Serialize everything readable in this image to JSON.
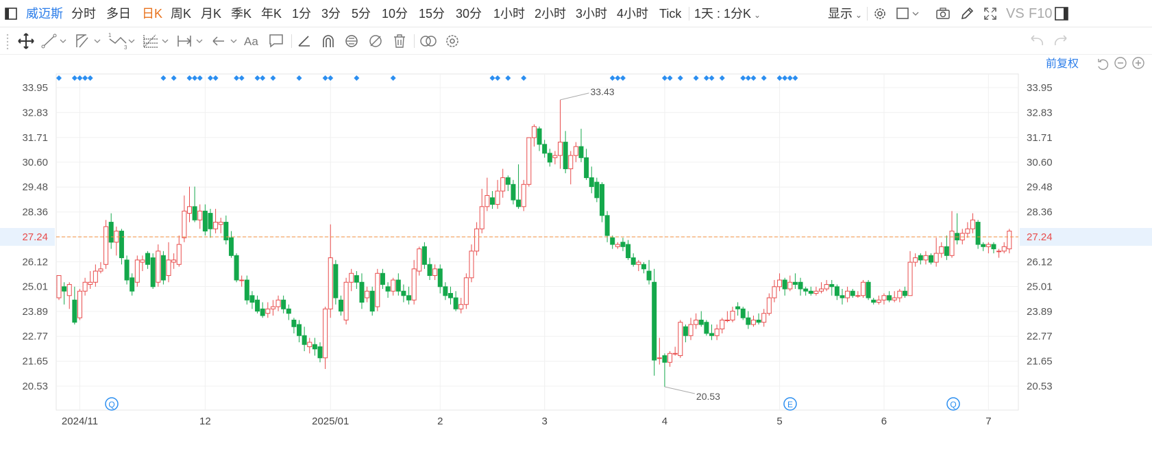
{
  "toolbar": {
    "stock_name": "威迈斯",
    "periods": [
      "分时",
      "多日",
      "日K",
      "周K",
      "月K",
      "季K",
      "年K",
      "1分",
      "3分",
      "5分",
      "10分",
      "15分",
      "30分",
      "1小时",
      "2小时",
      "3小时",
      "4小时",
      "Tick"
    ],
    "active_period": "日K",
    "combo_period": "1天 : 1分K",
    "display_label": "显示",
    "vs_label": "VS",
    "f10_label": "F10"
  },
  "chart_controls": {
    "adjust_label": "前复权"
  },
  "chart_data": {
    "type": "candlestick",
    "y_ticks": [
      "33.95",
      "32.83",
      "31.71",
      "30.60",
      "29.48",
      "28.36",
      "27.24",
      "26.12",
      "25.01",
      "23.89",
      "22.77",
      "21.65",
      "20.53"
    ],
    "x_ticks": [
      "2024/11",
      "12",
      "2025/01",
      "2",
      "3",
      "4",
      "5",
      "6",
      "7"
    ],
    "current_price": "27.24",
    "max_label": "33.43",
    "min_label": "20.53",
    "up_color": "#e84b4b",
    "down_color": "#14a84b",
    "marker_color": "#2b8ef0",
    "candles": [
      [
        24.5,
        25.5,
        24.4,
        25.4
      ],
      [
        25.0,
        24.8,
        24.2,
        25.2
      ],
      [
        24.6,
        25.1,
        24.0,
        25.2
      ],
      [
        24.4,
        23.4,
        23.3,
        25.0
      ],
      [
        23.6,
        24.8,
        23.5,
        24.9
      ],
      [
        24.8,
        25.2,
        24.6,
        25.4
      ],
      [
        25.1,
        25.2,
        24.9,
        25.7
      ],
      [
        25.2,
        25.7,
        25.0,
        26.0
      ],
      [
        25.7,
        25.8,
        25.6,
        26.1
      ],
      [
        26.0,
        27.7,
        25.8,
        28.0
      ],
      [
        27.9,
        27.0,
        26.7,
        28.3
      ],
      [
        27.0,
        27.5,
        26.4,
        27.7
      ],
      [
        27.5,
        26.3,
        26.0,
        27.6
      ],
      [
        26.2,
        25.3,
        25.1,
        26.4
      ],
      [
        25.4,
        24.8,
        24.6,
        25.6
      ],
      [
        25.2,
        26.2,
        25.0,
        26.4
      ],
      [
        26.1,
        26.2,
        25.7,
        26.4
      ],
      [
        26.5,
        26.0,
        25.8,
        26.6
      ],
      [
        26.3,
        25.0,
        24.9,
        26.5
      ],
      [
        25.2,
        26.6,
        25.0,
        26.9
      ],
      [
        26.4,
        25.3,
        25.1,
        26.6
      ],
      [
        25.5,
        26.2,
        25.2,
        27.0
      ],
      [
        26.1,
        26.2,
        25.8,
        26.5
      ],
      [
        26.0,
        26.9,
        25.9,
        27.3
      ],
      [
        27.2,
        28.4,
        27.0,
        29.1
      ],
      [
        28.3,
        28.6,
        27.9,
        29.5
      ],
      [
        28.6,
        28.0,
        27.9,
        29.5
      ],
      [
        28.0,
        28.4,
        27.6,
        28.7
      ],
      [
        28.4,
        27.5,
        27.3,
        28.7
      ],
      [
        28.3,
        27.6,
        27.2,
        28.5
      ],
      [
        27.6,
        27.9,
        27.4,
        28.5
      ],
      [
        27.8,
        27.9,
        27.4,
        28.1
      ],
      [
        27.9,
        27.1,
        26.9,
        28.2
      ],
      [
        27.2,
        26.4,
        26.3,
        27.5
      ],
      [
        26.4,
        25.3,
        25.2,
        26.5
      ],
      [
        25.3,
        25.3,
        25.0,
        25.5
      ],
      [
        25.3,
        24.4,
        24.2,
        25.5
      ],
      [
        24.6,
        24.3,
        24.0,
        24.8
      ],
      [
        24.4,
        23.9,
        23.8,
        24.6
      ],
      [
        24.0,
        23.7,
        23.6,
        24.3
      ],
      [
        23.8,
        24.0,
        23.6,
        24.3
      ],
      [
        24.0,
        24.1,
        23.7,
        24.4
      ],
      [
        24.1,
        24.4,
        23.9,
        24.6
      ],
      [
        24.4,
        24.0,
        23.8,
        24.6
      ],
      [
        24.0,
        23.8,
        23.5,
        24.2
      ],
      [
        23.5,
        23.2,
        22.9,
        23.6
      ],
      [
        23.3,
        22.8,
        22.5,
        23.5
      ],
      [
        22.8,
        22.4,
        22.1,
        23.2
      ],
      [
        22.3,
        22.5,
        22.0,
        22.7
      ],
      [
        22.4,
        22.2,
        21.9,
        22.7
      ],
      [
        22.3,
        21.8,
        21.6,
        22.5
      ],
      [
        21.8,
        24.0,
        21.3,
        24.1
      ],
      [
        24.0,
        26.3,
        23.6,
        27.8
      ],
      [
        26.0,
        24.5,
        24.2,
        26.2
      ],
      [
        24.4,
        23.9,
        23.7,
        24.6
      ],
      [
        23.5,
        25.2,
        23.3,
        25.4
      ],
      [
        25.2,
        25.6,
        24.8,
        25.8
      ],
      [
        25.5,
        25.2,
        24.9,
        25.7
      ],
      [
        25.2,
        24.3,
        24.0,
        25.6
      ],
      [
        24.5,
        24.8,
        24.3,
        25.0
      ],
      [
        24.8,
        23.9,
        23.7,
        25.0
      ],
      [
        24.1,
        25.6,
        23.9,
        25.8
      ],
      [
        25.6,
        25.1,
        24.9,
        25.8
      ],
      [
        25.0,
        24.8,
        24.5,
        25.2
      ],
      [
        24.8,
        25.3,
        24.6,
        25.4
      ],
      [
        25.3,
        24.8,
        24.6,
        25.6
      ],
      [
        24.8,
        24.6,
        24.3,
        25.1
      ],
      [
        24.6,
        24.4,
        24.2,
        25.0
      ],
      [
        24.4,
        25.8,
        24.2,
        26.2
      ],
      [
        25.7,
        26.7,
        25.5,
        26.8
      ],
      [
        26.8,
        26.0,
        25.8,
        27.0
      ],
      [
        26.0,
        25.5,
        25.3,
        26.3
      ],
      [
        25.5,
        25.8,
        25.3,
        26.0
      ],
      [
        25.8,
        25.0,
        24.7,
        26.0
      ],
      [
        25.0,
        24.6,
        24.4,
        25.2
      ],
      [
        24.7,
        24.5,
        24.2,
        25.0
      ],
      [
        24.5,
        24.0,
        23.9,
        24.8
      ],
      [
        24.0,
        24.2,
        23.8,
        24.5
      ],
      [
        24.2,
        25.4,
        24.0,
        25.6
      ],
      [
        25.4,
        26.6,
        25.2,
        26.9
      ],
      [
        26.6,
        27.6,
        26.4,
        27.9
      ],
      [
        27.6,
        28.6,
        27.4,
        29.4
      ],
      [
        28.6,
        29.1,
        28.4,
        29.9
      ],
      [
        29.0,
        28.7,
        28.5,
        29.3
      ],
      [
        28.7,
        29.3,
        28.5,
        29.8
      ],
      [
        29.3,
        29.9,
        29.0,
        30.3
      ],
      [
        29.9,
        29.6,
        29.3,
        30.0
      ],
      [
        29.6,
        28.9,
        28.7,
        29.8
      ],
      [
        28.9,
        28.6,
        28.5,
        30.5
      ],
      [
        28.6,
        29.6,
        28.4,
        29.8
      ],
      [
        29.6,
        31.7,
        29.5,
        31.7
      ],
      [
        31.7,
        32.2,
        31.3,
        32.3
      ],
      [
        32.1,
        31.4,
        31.1,
        32.2
      ],
      [
        31.4,
        31.0,
        30.8,
        31.6
      ],
      [
        31.0,
        30.6,
        30.4,
        31.2
      ],
      [
        30.8,
        30.9,
        30.5,
        31.1
      ],
      [
        30.9,
        31.5,
        30.3,
        33.4
      ],
      [
        31.5,
        30.3,
        30.1,
        32.0
      ],
      [
        30.3,
        30.9,
        29.6,
        31.1
      ],
      [
        30.9,
        31.3,
        30.6,
        31.5
      ],
      [
        31.3,
        30.8,
        30.6,
        32.1
      ],
      [
        30.8,
        29.9,
        29.8,
        31.2
      ],
      [
        29.9,
        29.5,
        29.2,
        30.4
      ],
      [
        29.7,
        29.0,
        28.8,
        29.9
      ],
      [
        29.6,
        28.2,
        27.9,
        29.7
      ],
      [
        28.2,
        27.3,
        27.0,
        28.4
      ],
      [
        27.2,
        26.9,
        26.7,
        27.3
      ],
      [
        26.8,
        26.9,
        26.7,
        27.0
      ],
      [
        27.0,
        26.8,
        26.6,
        27.2
      ],
      [
        26.9,
        26.3,
        26.2,
        27.1
      ],
      [
        26.3,
        26.0,
        25.9,
        26.5
      ],
      [
        26.0,
        26.1,
        25.7,
        26.2
      ],
      [
        26.0,
        25.8,
        25.6,
        26.1
      ],
      [
        25.7,
        25.3,
        25.1,
        26.2
      ],
      [
        25.2,
        21.7,
        21.0,
        25.8
      ],
      [
        21.8,
        21.8,
        21.5,
        22.7
      ],
      [
        21.9,
        21.6,
        20.5,
        22.0
      ],
      [
        21.6,
        22.0,
        21.4,
        22.1
      ],
      [
        22.0,
        22.0,
        21.9,
        22.3
      ],
      [
        21.9,
        23.4,
        21.8,
        23.5
      ],
      [
        23.2,
        22.8,
        22.5,
        23.3
      ],
      [
        22.8,
        23.3,
        22.6,
        23.6
      ],
      [
        23.3,
        23.5,
        23.1,
        23.8
      ],
      [
        23.5,
        23.3,
        23.2,
        23.9
      ],
      [
        23.4,
        22.9,
        22.8,
        23.5
      ],
      [
        22.9,
        22.8,
        22.6,
        23.3
      ],
      [
        22.8,
        23.1,
        22.6,
        23.3
      ],
      [
        23.1,
        23.5,
        22.9,
        23.6
      ],
      [
        23.5,
        23.5,
        23.4,
        23.9
      ],
      [
        23.5,
        23.9,
        23.4,
        24.1
      ],
      [
        24.1,
        24.0,
        23.7,
        24.3
      ],
      [
        24.0,
        23.6,
        23.5,
        24.1
      ],
      [
        23.6,
        23.3,
        23.1,
        23.9
      ],
      [
        23.3,
        23.5,
        23.2,
        23.7
      ],
      [
        23.5,
        23.4,
        23.3,
        23.8
      ],
      [
        23.4,
        23.8,
        23.2,
        24.0
      ],
      [
        23.8,
        24.5,
        23.7,
        24.7
      ],
      [
        24.5,
        25.0,
        24.3,
        25.3
      ],
      [
        25.0,
        25.3,
        24.8,
        25.6
      ],
      [
        25.3,
        24.9,
        24.6,
        25.4
      ],
      [
        24.9,
        25.2,
        24.8,
        25.5
      ],
      [
        25.2,
        25.1,
        24.9,
        25.6
      ],
      [
        25.2,
        24.9,
        24.6,
        25.4
      ],
      [
        24.9,
        24.8,
        24.6,
        25.0
      ],
      [
        24.8,
        24.7,
        24.6,
        25.0
      ],
      [
        24.7,
        24.8,
        24.6,
        25.0
      ],
      [
        24.8,
        24.9,
        24.7,
        25.2
      ],
      [
        24.9,
        25.1,
        24.8,
        25.3
      ],
      [
        25.1,
        25.0,
        24.6,
        25.3
      ],
      [
        25.0,
        24.6,
        24.4,
        25.1
      ],
      [
        24.6,
        24.5,
        24.2,
        24.9
      ],
      [
        24.5,
        24.8,
        24.3,
        25.0
      ],
      [
        24.8,
        24.6,
        24.5,
        24.9
      ],
      [
        24.6,
        24.6,
        24.5,
        24.8
      ],
      [
        24.6,
        25.2,
        24.5,
        25.3
      ],
      [
        25.2,
        24.5,
        24.4,
        25.3
      ],
      [
        24.4,
        24.3,
        24.2,
        24.5
      ],
      [
        24.3,
        24.4,
        24.2,
        24.6
      ],
      [
        24.4,
        24.6,
        24.2,
        24.7
      ],
      [
        24.6,
        24.4,
        24.3,
        24.8
      ],
      [
        24.4,
        24.5,
        24.3,
        24.8
      ],
      [
        24.5,
        24.8,
        24.3,
        24.9
      ],
      [
        24.8,
        24.6,
        24.5,
        25.0
      ],
      [
        24.6,
        26.1,
        24.6,
        26.6
      ],
      [
        26.1,
        26.3,
        25.9,
        26.5
      ],
      [
        26.4,
        26.2,
        26.0,
        26.5
      ],
      [
        26.2,
        26.4,
        26.0,
        26.6
      ],
      [
        26.4,
        26.1,
        26.0,
        26.5
      ],
      [
        26.1,
        26.5,
        25.9,
        27.2
      ],
      [
        26.5,
        26.8,
        26.3,
        27.0
      ],
      [
        26.8,
        26.4,
        26.2,
        27.3
      ],
      [
        26.4,
        27.5,
        26.3,
        28.4
      ],
      [
        27.4,
        27.1,
        26.9,
        28.3
      ],
      [
        27.1,
        27.4,
        26.9,
        27.6
      ],
      [
        27.4,
        27.6,
        27.2,
        27.9
      ],
      [
        27.6,
        28.0,
        27.4,
        28.3
      ],
      [
        27.9,
        26.9,
        26.7,
        28.0
      ],
      [
        26.9,
        26.8,
        26.6,
        27.0
      ],
      [
        26.8,
        26.9,
        26.5,
        27.0
      ],
      [
        26.9,
        26.7,
        26.5,
        27.0
      ],
      [
        26.6,
        26.6,
        26.3,
        26.7
      ],
      [
        26.6,
        26.8,
        26.5,
        27.0
      ],
      [
        26.7,
        27.5,
        26.5,
        27.6
      ]
    ],
    "marker_days": [
      0,
      3,
      4,
      5,
      6,
      20,
      22,
      25,
      26,
      27,
      29,
      30,
      34,
      35,
      38,
      39,
      41,
      46,
      51,
      52,
      57,
      64,
      83,
      84,
      86,
      89,
      106,
      107,
      108,
      116,
      117,
      119,
      122,
      124,
      125,
      127,
      131,
      132,
      133,
      135,
      138,
      139,
      140,
      141
    ]
  }
}
